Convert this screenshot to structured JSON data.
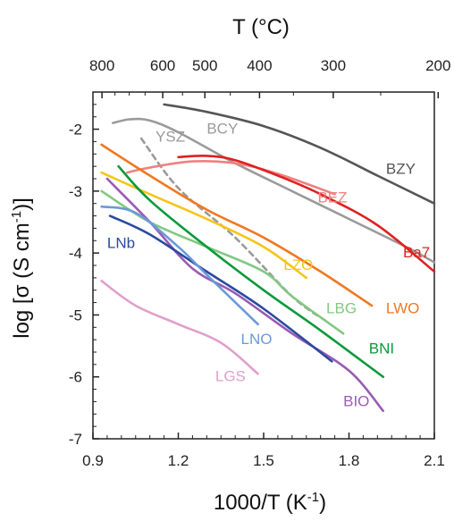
{
  "chart_data": {
    "type": "line",
    "xlabel_base": "1000/T (K",
    "xlabel_sup": "-1",
    "xlabel_close": ")",
    "ylabel_base": "log [σ (S cm",
    "ylabel_sup": "-1",
    "ylabel_close": ")]",
    "top_axis_title": "T (°C)",
    "xlim": [
      0.9,
      2.1
    ],
    "ylim": [
      -7,
      -1.4
    ],
    "x_ticks": [
      0.9,
      1.2,
      1.5,
      1.8,
      2.1
    ],
    "x_tick_labels": [
      "0.9",
      "1.2",
      "1.5",
      "1.8",
      "2.1"
    ],
    "y_ticks": [
      -2,
      -3,
      -4,
      -5,
      -6,
      -7
    ],
    "y_tick_labels": [
      "-2",
      "-3",
      "-4",
      "-5",
      "-6",
      "-7"
    ],
    "top_ticks": [
      {
        "label": "800",
        "celsius": 800
      },
      {
        "label": "600",
        "celsius": 600
      },
      {
        "label": "500",
        "celsius": 500
      },
      {
        "label": "400",
        "celsius": 400
      },
      {
        "label": "300",
        "celsius": 300
      },
      {
        "label": "200",
        "celsius": 200
      }
    ],
    "series": [
      {
        "name": "BZY",
        "color": "#555555",
        "dash": false,
        "points": [
          [
            1.15,
            -1.6
          ],
          [
            1.3,
            -1.72
          ],
          [
            1.5,
            -1.95
          ],
          [
            1.7,
            -2.3
          ],
          [
            1.9,
            -2.75
          ],
          [
            2.1,
            -3.2
          ]
        ],
        "label_at": [
          1.93,
          -2.72
        ]
      },
      {
        "name": "BCY",
        "color": "#9a9a9a",
        "dash": false,
        "points": [
          [
            0.97,
            -1.9
          ],
          [
            1.03,
            -1.84
          ],
          [
            1.1,
            -1.86
          ],
          [
            1.2,
            -2.05
          ],
          [
            1.4,
            -2.55
          ],
          [
            1.6,
            -3.0
          ],
          [
            1.8,
            -3.45
          ],
          [
            2.0,
            -3.9
          ],
          [
            2.1,
            -4.15
          ]
        ],
        "label_at": [
          1.3,
          -2.07
        ]
      },
      {
        "name": "YSZ",
        "color": "#9a9a9a",
        "dash": true,
        "points": [
          [
            1.07,
            -2.15
          ],
          [
            1.2,
            -2.95
          ],
          [
            1.4,
            -3.75
          ],
          [
            1.6,
            -4.7
          ],
          [
            1.72,
            -5.1
          ]
        ],
        "label_at": [
          1.12,
          -2.2
        ]
      },
      {
        "name": "BEZ",
        "color": "#f08080",
        "dash": false,
        "points": [
          [
            1.02,
            -2.7
          ],
          [
            1.1,
            -2.62
          ],
          [
            1.25,
            -2.52
          ],
          [
            1.4,
            -2.55
          ],
          [
            1.55,
            -2.72
          ],
          [
            1.75,
            -3.05
          ]
        ],
        "label_at": [
          1.69,
          -3.18
        ]
      },
      {
        "name": "Ba7",
        "color": "#e02020",
        "dash": false,
        "points": [
          [
            1.2,
            -2.45
          ],
          [
            1.3,
            -2.43
          ],
          [
            1.4,
            -2.5
          ],
          [
            1.55,
            -2.75
          ],
          [
            1.7,
            -3.05
          ],
          [
            1.9,
            -3.55
          ],
          [
            2.1,
            -4.3
          ]
        ],
        "label_at": [
          1.99,
          -4.07
        ]
      },
      {
        "name": "LWO",
        "color": "#f07820",
        "dash": false,
        "points": [
          [
            0.93,
            -2.25
          ],
          [
            1.1,
            -2.75
          ],
          [
            1.3,
            -3.3
          ],
          [
            1.5,
            -3.75
          ],
          [
            1.7,
            -4.3
          ],
          [
            1.88,
            -4.85
          ]
        ],
        "label_at": [
          1.93,
          -4.97
        ]
      },
      {
        "name": "LZO",
        "color": "#f5c518",
        "dash": false,
        "points": [
          [
            0.93,
            -2.7
          ],
          [
            1.1,
            -3.05
          ],
          [
            1.3,
            -3.45
          ],
          [
            1.5,
            -3.9
          ],
          [
            1.65,
            -4.4
          ]
        ],
        "label_at": [
          1.57,
          -4.27
        ]
      },
      {
        "name": "LBG",
        "color": "#82c882",
        "dash": false,
        "points": [
          [
            0.93,
            -3.0
          ],
          [
            1.1,
            -3.5
          ],
          [
            1.3,
            -3.9
          ],
          [
            1.5,
            -4.3
          ],
          [
            1.6,
            -4.7
          ],
          [
            1.78,
            -5.3
          ]
        ],
        "label_at": [
          1.72,
          -4.97
        ]
      },
      {
        "name": "BNI",
        "color": "#0a9a3a",
        "dash": false,
        "points": [
          [
            0.99,
            -2.6
          ],
          [
            1.1,
            -3.15
          ],
          [
            1.3,
            -3.9
          ],
          [
            1.5,
            -4.6
          ],
          [
            1.7,
            -5.25
          ],
          [
            1.92,
            -6.0
          ]
        ],
        "label_at": [
          1.87,
          -5.62
        ]
      },
      {
        "name": "BIO",
        "color": "#9a5ab4",
        "dash": false,
        "points": [
          [
            0.95,
            -2.8
          ],
          [
            1.1,
            -3.5
          ],
          [
            1.25,
            -4.25
          ],
          [
            1.4,
            -4.65
          ],
          [
            1.6,
            -5.3
          ],
          [
            1.8,
            -5.9
          ],
          [
            1.92,
            -6.55
          ]
        ],
        "label_at": [
          1.78,
          -6.47
        ]
      },
      {
        "name": "LNb",
        "color": "#2a4aa0",
        "dash": false,
        "points": [
          [
            0.96,
            -3.4
          ],
          [
            1.1,
            -3.7
          ],
          [
            1.3,
            -4.3
          ],
          [
            1.5,
            -4.9
          ],
          [
            1.74,
            -5.75
          ]
        ],
        "label_at": [
          0.95,
          -3.92
        ]
      },
      {
        "name": "LNO",
        "color": "#6a9ad8",
        "dash": false,
        "points": [
          [
            0.93,
            -3.25
          ],
          [
            1.05,
            -3.35
          ],
          [
            1.2,
            -3.9
          ],
          [
            1.3,
            -4.35
          ],
          [
            1.48,
            -5.15
          ]
        ],
        "label_at": [
          1.42,
          -5.47
        ]
      },
      {
        "name": "LGS",
        "color": "#e0a0cc",
        "dash": false,
        "points": [
          [
            0.93,
            -4.45
          ],
          [
            1.05,
            -4.85
          ],
          [
            1.2,
            -5.15
          ],
          [
            1.35,
            -5.45
          ],
          [
            1.48,
            -5.95
          ]
        ],
        "label_at": [
          1.33,
          -6.07
        ]
      }
    ]
  }
}
